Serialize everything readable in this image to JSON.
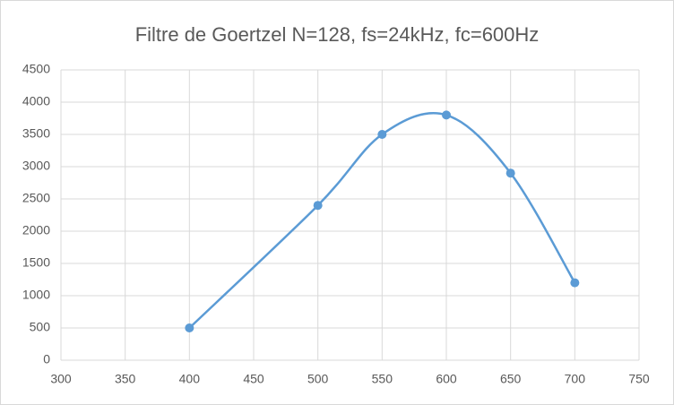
{
  "chart_data": {
    "type": "scatter",
    "title": "Filtre de Goertzel  N=128, fs=24kHz, fc=600Hz",
    "x": [
      400,
      500,
      550,
      600,
      650,
      700
    ],
    "series": [
      {
        "color": "#5b9bd5",
        "values": [
          500,
          2400,
          3500,
          3800,
          2900,
          1200
        ]
      }
    ],
    "xlim": [
      300,
      750
    ],
    "xticks": [
      300,
      350,
      400,
      450,
      500,
      550,
      600,
      650,
      700,
      750
    ],
    "ylim": [
      0,
      4500
    ],
    "yticks": [
      0,
      500,
      1000,
      1500,
      2000,
      2500,
      3000,
      3500,
      4000,
      4500
    ],
    "grid": true,
    "smooth": true,
    "markers": true
  }
}
